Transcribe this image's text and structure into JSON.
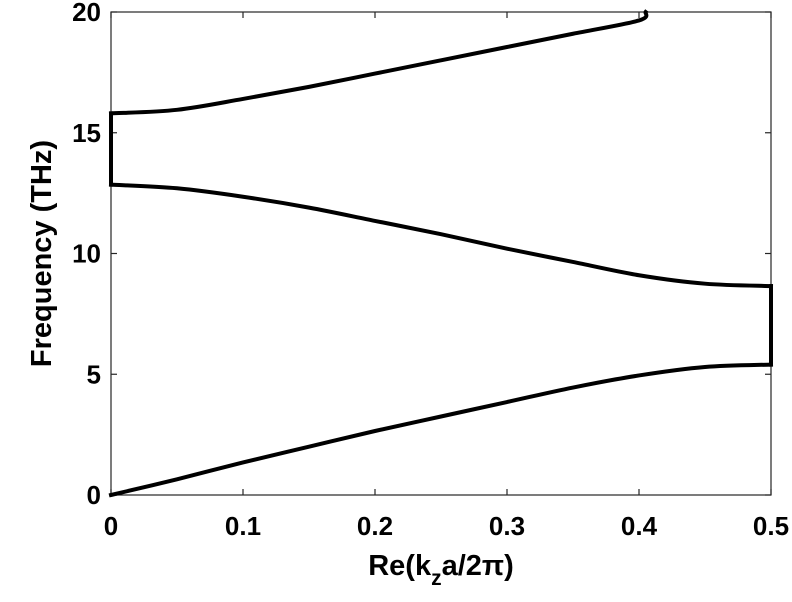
{
  "chart_data": {
    "type": "line",
    "title": "",
    "xlabel": "Re(k_z a/2π)",
    "xlabel_parts": {
      "prefix": "Re(k",
      "subscript": "z",
      "suffix": "a/2π)"
    },
    "ylabel": "Frequency (THz)",
    "xlim": [
      0,
      0.5
    ],
    "ylim": [
      0,
      20
    ],
    "xticks": [
      0,
      0.1,
      0.2,
      0.3,
      0.4,
      0.5
    ],
    "xtick_labels": [
      "0",
      "0.1",
      "0.2",
      "0.3",
      "0.4",
      "0.5"
    ],
    "yticks": [
      0,
      5,
      10,
      15,
      20
    ],
    "ytick_labels": [
      "0",
      "5",
      "10",
      "15",
      "20"
    ],
    "grid": false,
    "legend": "none",
    "line_color": "#000000",
    "series": [
      {
        "x": [
          0,
          0.05,
          0.1,
          0.15,
          0.2,
          0.25,
          0.3,
          0.35,
          0.4,
          0.45,
          0.5
        ],
        "y": [
          0,
          0.65,
          1.35,
          2.0,
          2.65,
          3.25,
          3.85,
          4.45,
          4.95,
          5.3,
          5.4
        ]
      },
      {
        "x": [
          0,
          0.05,
          0.1,
          0.15,
          0.2,
          0.25,
          0.3,
          0.35,
          0.4,
          0.45,
          0.5
        ],
        "y": [
          12.85,
          12.7,
          12.35,
          11.9,
          11.35,
          10.8,
          10.2,
          9.65,
          9.1,
          8.75,
          8.65
        ]
      },
      {
        "x": [
          0,
          0.05,
          0.1,
          0.15,
          0.2,
          0.25,
          0.3,
          0.35,
          0.4,
          0.405
        ],
        "y": [
          15.8,
          15.95,
          16.4,
          16.9,
          17.45,
          18.0,
          18.55,
          19.1,
          19.65,
          20.0
        ]
      },
      {
        "x": [
          0,
          0
        ],
        "y": [
          12.85,
          15.8
        ]
      },
      {
        "x": [
          0.5,
          0.5
        ],
        "y": [
          5.4,
          8.65
        ]
      }
    ]
  }
}
